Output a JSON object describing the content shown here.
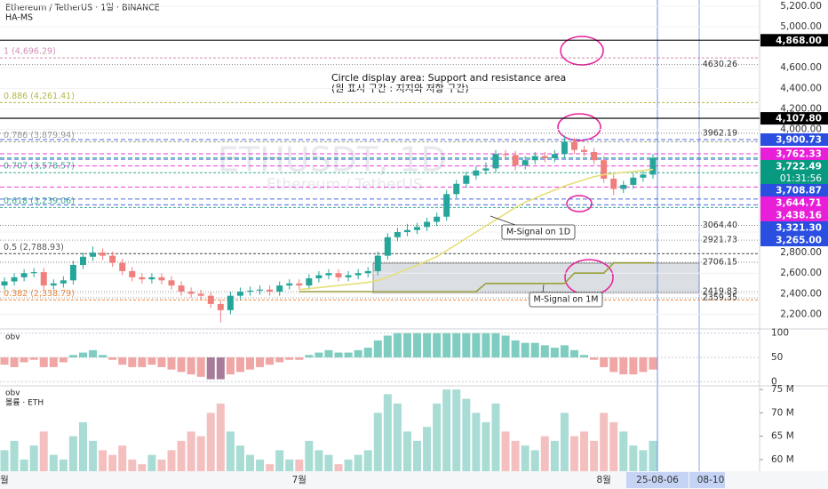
{
  "chart_data": {
    "type": "candlestick",
    "title": "Ethereum / TetherUS · 1일 · BINANCE",
    "subtitle": "HA-MS",
    "watermark": "ETHUSDT, 1D",
    "watermark_sub": "Ethereum / TetherUS",
    "annotations": [
      "Circle display area: Support and resistance area",
      "(원 표시 구간 : 지지와 저항 구간)"
    ],
    "categories": [
      "월",
      null,
      null,
      null,
      null,
      null,
      null,
      null,
      null,
      null,
      null,
      null,
      null,
      null,
      null,
      null,
      null,
      null,
      null,
      null,
      null,
      null,
      null,
      null,
      null,
      null,
      null,
      null,
      null,
      null,
      "7월",
      null,
      null,
      null,
      null,
      null,
      null,
      null,
      null,
      null,
      null,
      null,
      null,
      null,
      null,
      null,
      null,
      null,
      null,
      null,
      null,
      null,
      null,
      null,
      null,
      null,
      null,
      null,
      null,
      null,
      null,
      "8월",
      null,
      null,
      null,
      null,
      null
    ],
    "open": [
      2480,
      2520,
      2560,
      2600,
      2610,
      2480,
      2500,
      2530,
      2680,
      2760,
      2800,
      2770,
      2700,
      2620,
      2560,
      2540,
      2560,
      2530,
      2480,
      2420,
      2400,
      2380,
      2300,
      2240,
      2380,
      2420,
      2430,
      2440,
      2420,
      2480,
      2500,
      2480,
      2550,
      2580,
      2600,
      2560,
      2580,
      2600,
      2620,
      2770,
      2950,
      3000,
      3020,
      3050,
      3100,
      3150,
      3370,
      3470,
      3550,
      3600,
      3620,
      3760,
      3750,
      3650,
      3700,
      3740,
      3720,
      3760,
      3880,
      3800,
      3780,
      3700,
      3520,
      3420,
      3460,
      3530,
      3560
    ],
    "high": [
      2560,
      2600,
      2640,
      2650,
      2650,
      2540,
      2570,
      2720,
      2800,
      2860,
      2840,
      2810,
      2740,
      2660,
      2600,
      2600,
      2600,
      2570,
      2520,
      2460,
      2440,
      2420,
      2340,
      2420,
      2460,
      2470,
      2480,
      2480,
      2520,
      2540,
      2540,
      2590,
      2620,
      2640,
      2640,
      2620,
      2640,
      2660,
      2810,
      2990,
      3040,
      3080,
      3090,
      3140,
      3190,
      3410,
      3510,
      3590,
      3640,
      3680,
      3800,
      3800,
      3790,
      3740,
      3780,
      3780,
      3800,
      3940,
      3920,
      3840,
      3820,
      3740,
      3560,
      3500,
      3570,
      3600,
      3760
    ],
    "low": [
      2440,
      2480,
      2520,
      2560,
      2440,
      2440,
      2460,
      2490,
      2640,
      2720,
      2730,
      2660,
      2580,
      2520,
      2500,
      2500,
      2490,
      2440,
      2380,
      2360,
      2340,
      2260,
      2120,
      2200,
      2340,
      2380,
      2390,
      2380,
      2380,
      2440,
      2440,
      2440,
      2510,
      2540,
      2520,
      2520,
      2540,
      2560,
      2580,
      2730,
      2910,
      2960,
      2980,
      3010,
      3060,
      3110,
      3330,
      3430,
      3510,
      3560,
      3580,
      3710,
      3600,
      3610,
      3660,
      3680,
      3680,
      3720,
      3760,
      3740,
      3660,
      3480,
      3360,
      3380,
      3420,
      3490,
      3520
    ],
    "close": [
      2520,
      2560,
      2600,
      2610,
      2480,
      2500,
      2530,
      2680,
      2760,
      2800,
      2770,
      2700,
      2620,
      2560,
      2540,
      2560,
      2530,
      2480,
      2420,
      2400,
      2380,
      2300,
      2240,
      2380,
      2420,
      2430,
      2440,
      2420,
      2480,
      2500,
      2480,
      2550,
      2580,
      2600,
      2560,
      2580,
      2600,
      2620,
      2770,
      2950,
      3000,
      3020,
      3050,
      3100,
      3150,
      3370,
      3470,
      3550,
      3600,
      3620,
      3760,
      3750,
      3650,
      3700,
      3740,
      3720,
      3760,
      3880,
      3800,
      3780,
      3700,
      3520,
      3420,
      3460,
      3530,
      3560,
      3722.49
    ],
    "up_color": "#26a69a",
    "down_color": "#ef7f7c",
    "ylim": [
      2074,
      5260
    ],
    "yticks": [
      {
        "value": 2200,
        "label": "2,200.00"
      },
      {
        "value": 2400,
        "label": "2,400.00"
      },
      {
        "value": 2600,
        "label": "2,600.00"
      },
      {
        "value": 2800,
        "label": "2,800.00"
      },
      {
        "value": 3000,
        "label": "3,000.00"
      },
      {
        "value": 4000,
        "label": "4,000.00"
      },
      {
        "value": 4200,
        "label": "4,200.00"
      },
      {
        "value": 4400,
        "label": "4,400.00"
      },
      {
        "value": 4600,
        "label": "4,600.00"
      },
      {
        "value": 5000,
        "label": "5,000.00"
      },
      {
        "value": 5200,
        "label": "5,200.00"
      }
    ],
    "fib_levels": [
      {
        "value": 4696.29,
        "label": "1 (4,696.29)",
        "color": "#d08fb5"
      },
      {
        "value": 4261.41,
        "label": "0.886 (4,261.41)",
        "color": "#b5b84a"
      },
      {
        "value": 3879.94,
        "label": "0.786 (3,879.94)",
        "color": "#9e9e9e"
      },
      {
        "value": 3578.57,
        "label": "0.707 (3,578.57)",
        "color": "#3aa890"
      },
      {
        "value": 3239.06,
        "label": "0.618 (3,239.06)",
        "color": "#3aa890"
      },
      {
        "value": 2788.93,
        "label": "0.5 (2,788.93)",
        "color": "#555555"
      },
      {
        "value": 2338.79,
        "label": "0.382 (2,338.79)",
        "color": "#f08a3c"
      }
    ],
    "levels": [
      4630.26,
      3962.19,
      {
        "value": 3064.4,
        "label": "3064.40"
      },
      2921.73,
      2706.15,
      2419.83,
      2359.35
    ],
    "price_tags": [
      {
        "value": 4868,
        "label": "4,868.00",
        "color": "#000000"
      },
      {
        "value": 4107.8,
        "label": "4,107.80",
        "color": "#000000"
      },
      {
        "value": 3900.73,
        "label": "3,900.73",
        "color": "#2a4ee0"
      },
      {
        "value": 3762.33,
        "label": "3,762.33",
        "color": "#e81ed8"
      },
      {
        "value": 3722.49,
        "label": "3,722.49",
        "color": "#089981",
        "countdown": "01:31:56"
      },
      {
        "value": 3708.87,
        "label": "3,708.87",
        "color": "#2a4ee0"
      },
      {
        "value": 3644.71,
        "label": "3,644.71",
        "color": "#e81ed8"
      },
      {
        "value": 3438.16,
        "label": "3,438.16",
        "color": "#e81ed8"
      },
      {
        "value": 3321.3,
        "label": "3,321.30",
        "color": "#2a4ee0"
      },
      {
        "value": 3265,
        "label": "3,265.00",
        "color": "#2a4ee0"
      }
    ],
    "series": [
      {
        "name": "M-Signal on 1D",
        "color": "#e6e07a",
        "values": [
          null,
          null,
          null,
          null,
          null,
          null,
          null,
          null,
          null,
          null,
          null,
          null,
          null,
          null,
          null,
          null,
          null,
          null,
          null,
          null,
          null,
          null,
          null,
          null,
          null,
          null,
          null,
          null,
          null,
          null,
          2440,
          2450,
          2460,
          2470,
          2480,
          2490,
          2500,
          2510,
          2530,
          2560,
          2600,
          2640,
          2680,
          2720,
          2760,
          2820,
          2880,
          2940,
          3000,
          3060,
          3120,
          3180,
          3240,
          3290,
          3330,
          3370,
          3410,
          3450,
          3480,
          3510,
          3540,
          3560,
          3570,
          3580,
          3590,
          3600,
          3610
        ]
      },
      {
        "name": "M-Signal on 1M",
        "color": "#9aa03a",
        "values": [
          null,
          null,
          null,
          null,
          null,
          null,
          null,
          null,
          null,
          null,
          null,
          null,
          null,
          null,
          null,
          null,
          null,
          null,
          null,
          null,
          null,
          null,
          null,
          null,
          null,
          null,
          null,
          null,
          null,
          null,
          2420,
          2420,
          2420,
          2420,
          2420,
          2420,
          2420,
          2420,
          2420,
          2420,
          2420,
          2420,
          2420,
          2420,
          2420,
          2420,
          2420,
          2420,
          2420,
          2500,
          2500,
          2500,
          2500,
          2500,
          2500,
          2500,
          2500,
          2500,
          2600,
          2600,
          2600,
          2600,
          2700,
          2700,
          2700,
          2700,
          2700
        ]
      }
    ],
    "oscillator": {
      "label": "obv",
      "ylim": [
        -5,
        105
      ],
      "yticks": [
        0,
        50,
        100
      ],
      "values": [
        35,
        30,
        40,
        45,
        30,
        30,
        40,
        55,
        60,
        65,
        55,
        45,
        35,
        30,
        30,
        35,
        30,
        25,
        20,
        15,
        10,
        5,
        5,
        15,
        20,
        25,
        30,
        35,
        40,
        45,
        45,
        55,
        60,
        65,
        60,
        60,
        65,
        70,
        85,
        95,
        100,
        100,
        100,
        100,
        100,
        100,
        100,
        100,
        100,
        100,
        100,
        95,
        85,
        80,
        80,
        75,
        70,
        75,
        65,
        55,
        45,
        30,
        20,
        15,
        15,
        20,
        25
      ]
    },
    "volume": {
      "labels": [
        "obv",
        "볼륨 · ETH"
      ],
      "ylim": [
        57.5,
        75.4
      ],
      "yticks": [
        {
          "value": 60,
          "label": "60 M"
        },
        {
          "value": 65,
          "label": "65 M"
        },
        {
          "value": 70,
          "label": "70 M"
        },
        {
          "value": 75,
          "label": "75 M"
        }
      ],
      "values": [
        62,
        64,
        60,
        63,
        66,
        61,
        60,
        65,
        68,
        64,
        62,
        61,
        63,
        60,
        59,
        61,
        60,
        62,
        64,
        66,
        65,
        70,
        72,
        66,
        63,
        61,
        60,
        59,
        62,
        60,
        60,
        64,
        62,
        61,
        59,
        60,
        61,
        62,
        70,
        74,
        72,
        66,
        64,
        67,
        72,
        75,
        75,
        73,
        70,
        68,
        72,
        66,
        64,
        63,
        62,
        65,
        64,
        70,
        65,
        66,
        64,
        70,
        68,
        66,
        63,
        62,
        64
      ]
    },
    "cursor_date": "25-08-06",
    "end_date": "08-10"
  }
}
